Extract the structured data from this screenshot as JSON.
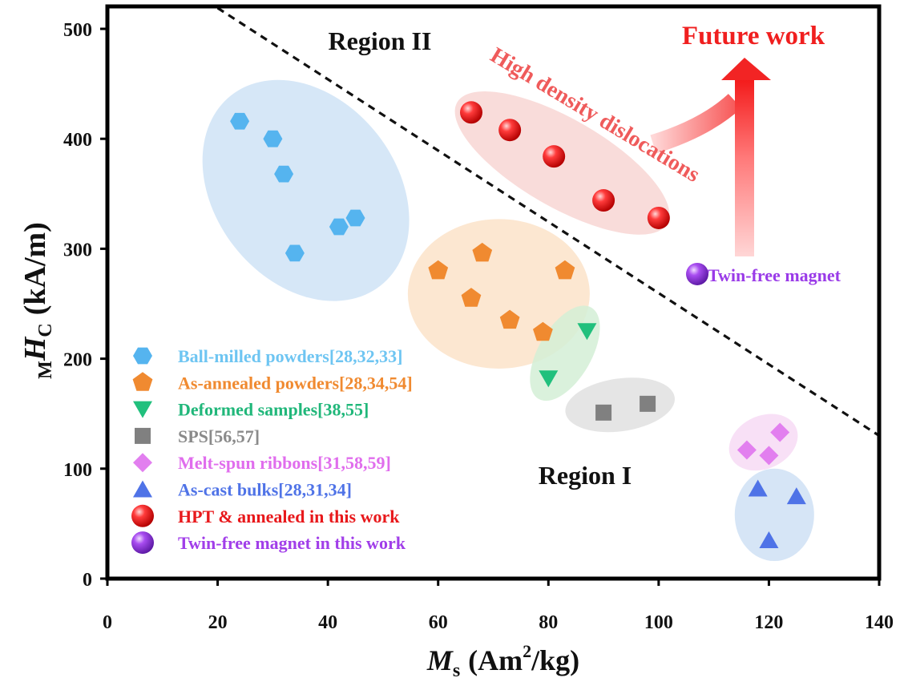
{
  "chart_data": {
    "type": "scatter",
    "xlabel_main": "M",
    "xlabel_sub": "s",
    "xlabel_unit": "(Am",
    "xlabel_sup": "2",
    "xlabel_unit_end": "/kg)",
    "ylabel_pre": "M",
    "ylabel_main": "H",
    "ylabel_sub": "C",
    "ylabel_unit": "(kA/m)",
    "xlim": [
      0,
      140
    ],
    "ylim": [
      0,
      500
    ],
    "xticks": [
      "0",
      "20",
      "40",
      "60",
      "80",
      "100",
      "120",
      "140"
    ],
    "yticks": [
      "0",
      "100",
      "200",
      "300",
      "400",
      "500"
    ],
    "series": [
      {
        "name": "Ball-milled powders[28,32,33]",
        "marker": "hexagon",
        "color": "#55b4ef",
        "label_color": "#6ec5f2",
        "ellipse": {
          "cx": 36,
          "cy": 353,
          "rx": 16.5,
          "ry": 110,
          "rot": -38,
          "color": "#cfe3f6"
        },
        "points": [
          [
            24,
            416
          ],
          [
            30,
            400
          ],
          [
            32,
            368
          ],
          [
            34,
            296
          ],
          [
            42,
            320
          ],
          [
            45,
            328
          ]
        ]
      },
      {
        "name": "As-annealed powders[28,34,54]",
        "marker": "pentagon",
        "color": "#f08a30",
        "label_color": "#f08a30",
        "ellipse": {
          "cx": 71,
          "cy": 259,
          "rx": 16.5,
          "ry": 68,
          "rot": 0,
          "color": "#fbe3c9"
        },
        "points": [
          [
            60,
            280
          ],
          [
            68,
            296
          ],
          [
            66,
            255
          ],
          [
            73,
            235
          ],
          [
            79,
            224
          ],
          [
            83,
            280
          ]
        ]
      },
      {
        "name": "Deformed samples[38,55]",
        "marker": "triangle-down",
        "color": "#21c07d",
        "label_color": "#20b77a",
        "ellipse": {
          "cx": 83,
          "cy": 205,
          "rx": 4.8,
          "ry": 48,
          "rot": 30,
          "color": "#d4efd6"
        },
        "points": [
          [
            80,
            182
          ],
          [
            87,
            225
          ]
        ]
      },
      {
        "name": "SPS[56,57]",
        "marker": "square",
        "color": "#808080",
        "label_color": "#8a8a8a",
        "ellipse": {
          "cx": 93,
          "cy": 158,
          "rx": 10,
          "ry": 24,
          "rot": -8,
          "color": "#e1e1e1"
        },
        "points": [
          [
            90,
            151
          ],
          [
            98,
            159
          ]
        ]
      },
      {
        "name": "Melt-spun ribbons[31,58,59]",
        "marker": "diamond",
        "color": "#e27fef",
        "label_color": "#e06ded",
        "ellipse": {
          "cx": 119,
          "cy": 124,
          "rx": 6.5,
          "ry": 24,
          "rot": -25,
          "color": "#f7dbf5"
        },
        "points": [
          [
            116,
            117
          ],
          [
            120,
            112
          ],
          [
            122,
            133
          ]
        ]
      },
      {
        "name": "As-cast bulks[28,31,34]",
        "marker": "triangle-up",
        "color": "#4f73e7",
        "label_color": "#4f73e7",
        "ellipse": {
          "cx": 121,
          "cy": 58,
          "rx": 7.2,
          "ry": 42,
          "rot": 0,
          "color": "#cfe0f4"
        },
        "points": [
          [
            118,
            82
          ],
          [
            125,
            75
          ],
          [
            120,
            35
          ]
        ]
      },
      {
        "name": "HPT & annealed in this work",
        "marker": "ball",
        "color": "#e8181b",
        "label_color": "#e8181b",
        "ellipse": {
          "cx": 82.5,
          "cy": 378,
          "rx": 22,
          "ry": 40,
          "rot": 30,
          "color": "#f8d6d3"
        },
        "points": [
          [
            66,
            424
          ],
          [
            73,
            408
          ],
          [
            81,
            384
          ],
          [
            90,
            344
          ],
          [
            100,
            328
          ]
        ]
      },
      {
        "name": "Twin-free magnet in this work",
        "marker": "ball",
        "color": "#9a3be8",
        "label_color": "#a13ee9",
        "points": [
          [
            107,
            277
          ]
        ]
      }
    ],
    "annotations": {
      "region1": "Region I",
      "region2": "Region II",
      "future": "Future work",
      "hdd": "High density dislocations",
      "twin_label": "Twin-free magnet"
    },
    "boundary_line": [
      [
        20,
        520
      ],
      [
        140,
        130
      ]
    ],
    "legend_position": "lower-left",
    "grid": false
  }
}
